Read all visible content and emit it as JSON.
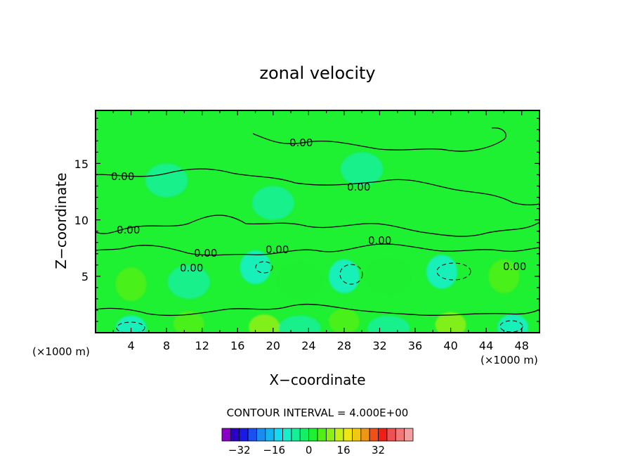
{
  "chart_data": {
    "type": "heatmap",
    "title": "zonal velocity",
    "xlabel": "X−coordinate",
    "ylabel": "Z−coordinate",
    "x_unit_left": "(×1000 m)",
    "x_unit_right": "(×1000 m)",
    "xlim": [
      0,
      50
    ],
    "ylim": [
      0,
      19.7
    ],
    "x_ticks": [
      "4",
      "8",
      "12",
      "16",
      "20",
      "24",
      "28",
      "32",
      "36",
      "40",
      "44",
      "48"
    ],
    "y_ticks": [
      "5",
      "10",
      "15"
    ],
    "grid": false,
    "contour_interval_text": "CONTOUR INTERVAL = 4.000E+00",
    "contour_labels": [
      "0.00",
      "0.00",
      "0.00",
      "0.00",
      "0.00",
      "0.00",
      "0.00",
      "0.00",
      "0.00"
    ],
    "colorbar": {
      "tick_labels": [
        "−32",
        "−16",
        "0",
        "16",
        "32"
      ],
      "tick_values": [
        -32,
        -16,
        0,
        16,
        32
      ],
      "colors": [
        "#8a00c8",
        "#2a00c8",
        "#1a1ae6",
        "#1a50f0",
        "#1a8cf0",
        "#14b4f0",
        "#14dcf0",
        "#14f0c8",
        "#14f096",
        "#14f064",
        "#1ef032",
        "#50f014",
        "#8cf014",
        "#c8f014",
        "#f0e614",
        "#f0c814",
        "#f09614",
        "#f05014",
        "#f01e14",
        "#f05050",
        "#f07878",
        "#f0a0a0"
      ]
    },
    "blobs": [
      {
        "x": 4,
        "z": 4.3,
        "value": 8
      },
      {
        "x": 4,
        "z": 0.4,
        "value": -8
      },
      {
        "x": 10.5,
        "z": 4.5,
        "value": -4
      },
      {
        "x": 10.5,
        "z": 0.8,
        "value": 8
      },
      {
        "x": 18,
        "z": 5.8,
        "value": -8
      },
      {
        "x": 19,
        "z": 0.5,
        "value": 12
      },
      {
        "x": 23,
        "z": 4.6,
        "value": 4
      },
      {
        "x": 23,
        "z": 0.4,
        "value": -4
      },
      {
        "x": 28,
        "z": 5.0,
        "value": -8
      },
      {
        "x": 28,
        "z": 1.0,
        "value": 8
      },
      {
        "x": 33,
        "z": 5.0,
        "value": 4
      },
      {
        "x": 33,
        "z": 0.4,
        "value": -4
      },
      {
        "x": 39,
        "z": 5.4,
        "value": -8
      },
      {
        "x": 40,
        "z": 0.7,
        "value": 12
      },
      {
        "x": 46,
        "z": 5.0,
        "value": 8
      },
      {
        "x": 47,
        "z": 0.5,
        "value": -8
      },
      {
        "x": 20,
        "z": 11.5,
        "value": -4
      },
      {
        "x": 30,
        "z": 14.5,
        "value": -4
      },
      {
        "x": 8,
        "z": 13.5,
        "value": -4
      }
    ]
  }
}
